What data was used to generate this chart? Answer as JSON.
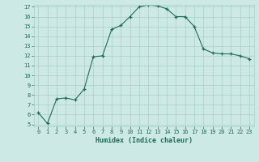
{
  "x": [
    0,
    1,
    2,
    3,
    4,
    5,
    6,
    7,
    8,
    9,
    10,
    11,
    12,
    13,
    14,
    15,
    16,
    17,
    18,
    19,
    20,
    21,
    22,
    23
  ],
  "y": [
    6.2,
    5.1,
    7.6,
    7.7,
    7.5,
    8.6,
    11.9,
    12.0,
    14.7,
    15.1,
    16.0,
    17.0,
    17.2,
    17.1,
    16.8,
    16.0,
    16.0,
    15.0,
    12.7,
    12.3,
    12.2,
    12.2,
    12.0,
    11.7
  ],
  "xlabel": "Humidex (Indice chaleur)",
  "bg_color": "#cce9e5",
  "line_color": "#1f6b5a",
  "marker_color": "#1f6b5a",
  "grid_color": "#aacfca",
  "tick_color": "#1f6b5a",
  "xlabel_color": "#1f6b5a",
  "ylim_min": 5,
  "ylim_max": 17,
  "xlim_min": -0.5,
  "xlim_max": 23.5,
  "yticks": [
    5,
    6,
    7,
    8,
    9,
    10,
    11,
    12,
    13,
    14,
    15,
    16,
    17
  ],
  "xticks": [
    0,
    1,
    2,
    3,
    4,
    5,
    6,
    7,
    8,
    9,
    10,
    11,
    12,
    13,
    14,
    15,
    16,
    17,
    18,
    19,
    20,
    21,
    22,
    23
  ]
}
